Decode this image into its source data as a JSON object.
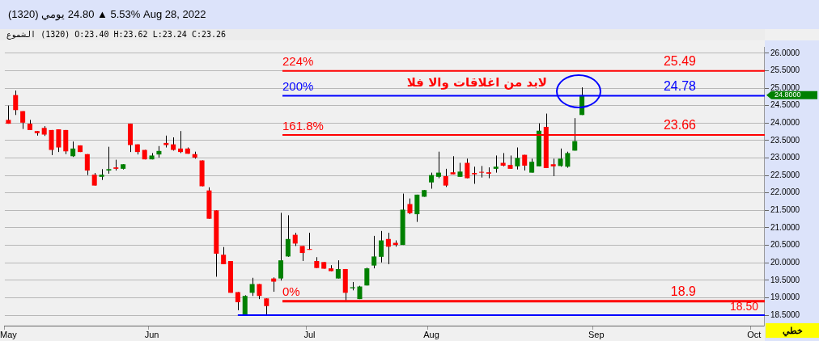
{
  "chart_data": {
    "type": "candlestick",
    "title": "(1320) يومي 24.80 ▲ 5.53% Aug 28, 2022",
    "subtitle": "الشموع (1320) O:23.40 H:23.62 L:23.24 C:23.26",
    "categories": [
      "May",
      null,
      null,
      null,
      null,
      null,
      null,
      null,
      null,
      null,
      null,
      null,
      null,
      null,
      null,
      null,
      null,
      null,
      null,
      null,
      "Jun",
      null,
      null,
      null,
      null,
      null,
      null,
      null,
      null,
      null,
      null,
      null,
      null,
      null,
      null,
      null,
      null,
      null,
      null,
      null,
      null,
      null,
      "Jul",
      null,
      null,
      null,
      null,
      null,
      null,
      null,
      null,
      null,
      null,
      null,
      null,
      null,
      null,
      null,
      null,
      "Aug",
      null,
      null,
      null,
      null,
      null,
      null,
      null,
      null,
      null,
      null,
      null,
      null,
      null,
      null,
      null,
      null,
      null,
      null,
      null,
      null,
      null,
      null,
      "Sep",
      null,
      null,
      null,
      null,
      null,
      null,
      null,
      null,
      null,
      null,
      null,
      null,
      null,
      null,
      null,
      null,
      null,
      null,
      null,
      null,
      null,
      "Oct",
      null
    ],
    "ohlc": [
      [
        24.09,
        24.5,
        23.98,
        23.98
      ],
      [
        24.8,
        24.93,
        24.23,
        24.37
      ],
      [
        24.34,
        24.34,
        23.83,
        24.01
      ],
      [
        23.98,
        24.09,
        23.8,
        23.8
      ],
      [
        23.77,
        23.77,
        23.64,
        23.71
      ],
      [
        23.86,
        23.91,
        23.63,
        23.67
      ],
      [
        23.8,
        23.8,
        23.08,
        23.23
      ],
      [
        23.82,
        23.82,
        23.17,
        23.3
      ],
      [
        23.8,
        23.8,
        23.11,
        23.19
      ],
      [
        23.05,
        23.47,
        23.03,
        23.27
      ],
      [
        23.36,
        23.36,
        23.17,
        23.17
      ],
      [
        23.11,
        23.11,
        22.51,
        22.64
      ],
      [
        22.52,
        22.57,
        22.21,
        22.21
      ],
      [
        22.46,
        22.68,
        22.37,
        22.52
      ],
      [
        22.64,
        23.32,
        22.55,
        22.68
      ],
      [
        22.73,
        22.95,
        22.64,
        22.69
      ],
      [
        22.69,
        22.82,
        22.67,
        22.82
      ],
      [
        23.98,
        23.98,
        23.17,
        23.37
      ],
      [
        23.39,
        23.39,
        23.1,
        23.17
      ],
      [
        23.23,
        23.23,
        22.96,
        22.96
      ],
      [
        22.96,
        23.14,
        22.96,
        23.07
      ],
      [
        23.1,
        23.34,
        23.01,
        23.2
      ],
      [
        23.43,
        23.64,
        23.3,
        23.37
      ],
      [
        23.39,
        23.59,
        23.21,
        23.23
      ],
      [
        23.27,
        23.77,
        23.14,
        23.17
      ],
      [
        23.27,
        23.3,
        23.12,
        23.12
      ],
      [
        23.11,
        23.18,
        22.98,
        23.01
      ],
      [
        22.93,
        22.93,
        22.19,
        22.19
      ],
      [
        22.07,
        22.16,
        21.26,
        21.26
      ],
      [
        21.5,
        21.5,
        19.6,
        20.26
      ],
      [
        20.23,
        20.45,
        19.96,
        19.96
      ],
      [
        20.05,
        20.05,
        19.14,
        19.14
      ],
      [
        19.16,
        19.16,
        18.64,
        18.87
      ],
      [
        18.5,
        19.07,
        18.5,
        19.05
      ],
      [
        19.14,
        19.57,
        19.05,
        19.39
      ],
      [
        19.39,
        19.39,
        18.96,
        19.05
      ],
      [
        18.98,
        18.98,
        18.5,
        18.76
      ],
      [
        19.55,
        19.58,
        19.17,
        19.46
      ],
      [
        19.55,
        21.43,
        19.49,
        20.07
      ],
      [
        20.18,
        21.36,
        20.17,
        20.68
      ],
      [
        20.8,
        20.86,
        20.48,
        20.55
      ],
      [
        20.48,
        20.48,
        20.05,
        20.28
      ],
      [
        20.39,
        20.86,
        20.37,
        20.37
      ],
      [
        20.05,
        20.16,
        19.85,
        19.85
      ],
      [
        20.02,
        20.02,
        19.83,
        19.83
      ],
      [
        19.84,
        19.93,
        19.76,
        19.76
      ],
      [
        19.55,
        20.07,
        19.55,
        19.82
      ],
      [
        19.82,
        19.82,
        18.9,
        19.14
      ],
      [
        19.27,
        19.45,
        19.21,
        19.3
      ],
      [
        18.96,
        19.34,
        18.96,
        19.32
      ],
      [
        19.35,
        19.86,
        19.35,
        19.84
      ],
      [
        19.92,
        20.77,
        19.84,
        20.18
      ],
      [
        20.17,
        20.91,
        20.01,
        20.64
      ],
      [
        20.68,
        20.86,
        19.96,
        20.46
      ],
      [
        20.57,
        20.64,
        20.46,
        20.51
      ],
      [
        20.51,
        21.98,
        20.51,
        21.52
      ],
      [
        21.68,
        21.84,
        21.39,
        21.42
      ],
      [
        21.39,
        21.95,
        21.17,
        21.95
      ],
      [
        21.89,
        22.08,
        21.89,
        22.08
      ],
      [
        22.3,
        22.58,
        22.12,
        22.51
      ],
      [
        22.46,
        23.18,
        22.42,
        22.58
      ],
      [
        22.48,
        22.69,
        22.17,
        22.21
      ],
      [
        22.59,
        23.05,
        22.53,
        22.53
      ],
      [
        22.46,
        22.86,
        22.46,
        22.61
      ],
      [
        22.86,
        22.98,
        22.42,
        22.42
      ],
      [
        22.57,
        22.75,
        22.26,
        22.53
      ],
      [
        22.59,
        22.77,
        22.44,
        22.58
      ],
      [
        22.59,
        22.73,
        22.42,
        22.55
      ],
      [
        22.69,
        23.07,
        22.58,
        22.75
      ],
      [
        22.86,
        23.14,
        22.76,
        22.78
      ],
      [
        22.8,
        23.07,
        22.69,
        22.69
      ],
      [
        22.76,
        23.3,
        22.67,
        23.0
      ],
      [
        23.09,
        23.09,
        22.64,
        22.78
      ],
      [
        22.58,
        22.98,
        22.58,
        22.89
      ],
      [
        22.76,
        23.99,
        22.76,
        23.78
      ],
      [
        23.89,
        24.27,
        22.71,
        22.71
      ],
      [
        22.82,
        22.98,
        22.48,
        22.76
      ],
      [
        22.77,
        23.27,
        22.75,
        22.98
      ],
      [
        22.75,
        23.18,
        22.72,
        23.14
      ],
      [
        23.21,
        24.14,
        23.21,
        23.48
      ],
      [
        24.23,
        25.02,
        24.23,
        24.8
      ],
      null,
      null,
      null,
      null,
      null,
      null,
      null,
      null,
      null,
      null,
      null,
      null,
      null,
      null,
      null,
      null,
      null,
      null,
      null,
      null,
      null,
      null,
      null,
      null,
      null
    ],
    "colors": [
      "#ff0000",
      "#ff0000",
      "#ff0000",
      "#ff0000",
      "#ff0000",
      "#ff0000",
      "#ff0000",
      "#ff0000",
      "#ff0000",
      "#008000",
      "#ff0000",
      "#ff0000",
      "#ff0000",
      "#008000",
      "#008000",
      "#ff0000",
      "#008000",
      "#ff0000",
      "#ff0000",
      "#ff0000",
      "#008000",
      "#008000",
      "#ff0000",
      "#ff0000",
      "#ff0000",
      "#ff0000",
      "#ff0000",
      "#ff0000",
      "#ff0000",
      "#ff0000",
      "#ff0000",
      "#ff0000",
      "#ff0000",
      "#008000",
      "#008000",
      "#ff0000",
      "#ff0000",
      "#ff0000",
      "#008000",
      "#008000",
      "#ff0000",
      "#ff0000",
      "#ff0000",
      "#ff0000",
      "#ff0000",
      "#ff0000",
      "#008000",
      "#ff0000",
      "#008000",
      "#008000",
      "#008000",
      "#008000",
      "#008000",
      "#ff0000",
      "#ff0000",
      "#008000",
      "#ff0000",
      "#008000",
      "#008000",
      "#008000",
      "#008000",
      "#ff0000",
      "#ff0000",
      "#008000",
      "#ff0000",
      "#ff0000",
      "#ff0000",
      "#ff0000",
      "#008000",
      "#ff0000",
      "#ff0000",
      "#008000",
      "#ff0000",
      "#008000",
      "#008000",
      "#ff0000",
      "#ff0000",
      "#008000",
      "#008000",
      "#008000",
      "#008000",
      null,
      null,
      null,
      null,
      null,
      null,
      null,
      null,
      null,
      null,
      null,
      null,
      null,
      null,
      null,
      null,
      null,
      null,
      null,
      null,
      null,
      null,
      null,
      null,
      null
    ],
    "ylim": [
      18.2,
      26.18
    ],
    "yticks": [
      {
        "value": 18.5,
        "label": "18.5000"
      },
      {
        "value": 19,
        "label": "19.0000"
      },
      {
        "value": 19.5,
        "label": "19.5000"
      },
      {
        "value": 20,
        "label": "20.0000"
      },
      {
        "value": 20.5,
        "label": "20.5000"
      },
      {
        "value": 21,
        "label": "21.0000"
      },
      {
        "value": 21.5,
        "label": "21.5000"
      },
      {
        "value": 22,
        "label": "22.0000"
      },
      {
        "value": 22.5,
        "label": "22.5000"
      },
      {
        "value": 23,
        "label": "23.0000"
      },
      {
        "value": 23.5,
        "label": "23.5000"
      },
      {
        "value": 24,
        "label": "24.0000"
      },
      {
        "value": 24.5,
        "label": "24.5000"
      },
      {
        "value": 25,
        "label": "25.0000"
      },
      {
        "value": 25.5,
        "label": "25.5000"
      },
      {
        "value": 26,
        "label": "26.0000"
      }
    ],
    "grid": "y",
    "ref_lines": [
      {
        "axis": "y",
        "value": 25.49,
        "label": "25.49",
        "color": "#ff0000"
      },
      {
        "axis": "y",
        "value": 24.78,
        "label": "24.78",
        "color": "#0000ff"
      },
      {
        "axis": "y",
        "value": 23.66,
        "label": "23.66",
        "color": "#ff0000"
      },
      {
        "axis": "y",
        "value": 18.9,
        "label": "18.9",
        "color": "#ff0000"
      },
      {
        "axis": "y",
        "value": 18.5,
        "label": "18.50",
        "color": "#0000ff"
      }
    ],
    "annotations": [
      "لابد من اغلاقات والا فلا",
      "خطي",
      "24.8000",
      {
        "text": "224%",
        "y": 25.49
      },
      {
        "text": "200%",
        "y": 24.78
      },
      {
        "text": "161.8%",
        "y": 23.66
      },
      {
        "text": "0%",
        "y": 18.9
      }
    ]
  }
}
